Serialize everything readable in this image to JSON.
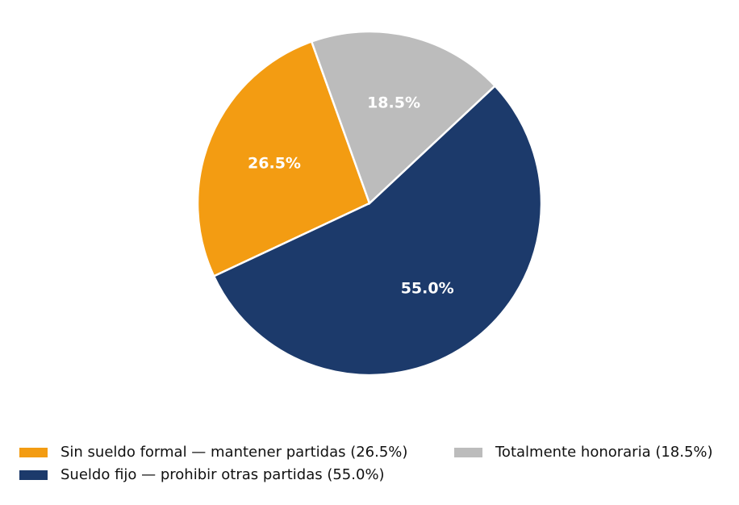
{
  "chart_data": {
    "type": "pie",
    "categories": [
      "Sin sueldo formal — mantener partidas (26.5%)",
      "Sueldo fijo — prohibir otras partidas (55.0%)",
      "Totalmente honoraria (18.5%)"
    ],
    "values": [
      26.5,
      55.0,
      18.5
    ],
    "value_labels": [
      "26.5%",
      "55.0%",
      "18.5%"
    ],
    "colors": [
      "#f39c12",
      "#1c3a6b",
      "#bcbcbc"
    ],
    "legend": "lower center"
  }
}
